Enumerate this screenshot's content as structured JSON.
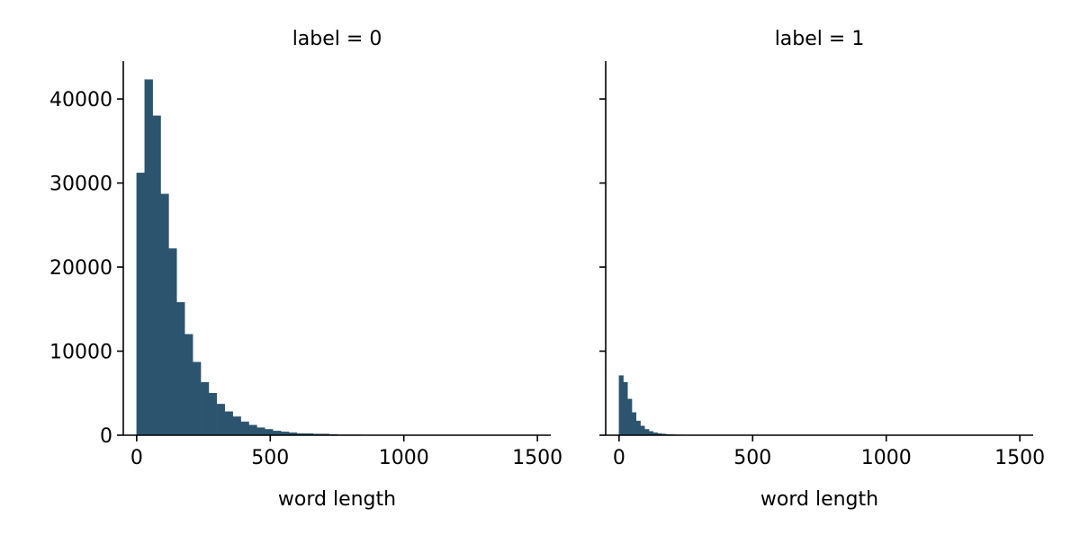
{
  "chart_data": [
    {
      "type": "bar",
      "title": "label = 0",
      "xlabel": "word length",
      "ylabel": "",
      "xlim": [
        -50,
        1550
      ],
      "ylim": [
        0,
        44500
      ],
      "xticks": [
        0,
        500,
        1000,
        1500
      ],
      "xtick_labels": [
        "0",
        "500",
        "1000",
        "1500"
      ],
      "yticks": [
        0,
        10000,
        20000,
        30000,
        40000
      ],
      "ytick_labels": [
        "0",
        "10000",
        "20000",
        "30000",
        "40000"
      ],
      "ytick_labels_visible": true,
      "grid": false,
      "bin_edges_start": 0,
      "bin_width": 30,
      "bar_color": "#2c546e",
      "values": [
        31200,
        42300,
        38000,
        28700,
        22200,
        15800,
        12000,
        8700,
        6300,
        5000,
        3700,
        2800,
        2200,
        1600,
        1200,
        900,
        700,
        500,
        400,
        300,
        200,
        200,
        150,
        150,
        100,
        50,
        50,
        50,
        30,
        30,
        20,
        20,
        10,
        10,
        10,
        10,
        5,
        5,
        5,
        5,
        5,
        5,
        5,
        5,
        5,
        5,
        5,
        5,
        5,
        5
      ]
    },
    {
      "type": "bar",
      "title": "label = 1",
      "xlabel": "word length",
      "ylabel": "",
      "xlim": [
        -50,
        1550
      ],
      "ylim": [
        0,
        44500
      ],
      "xticks": [
        0,
        500,
        1000,
        1500
      ],
      "xtick_labels": [
        "0",
        "500",
        "1000",
        "1500"
      ],
      "yticks": [
        0,
        10000,
        20000,
        30000,
        40000
      ],
      "ytick_labels": [
        "",
        "",
        "",
        "",
        ""
      ],
      "ytick_labels_visible": false,
      "grid": false,
      "bin_edges_start": 0,
      "bin_width": 16,
      "bar_color": "#2c546e",
      "values": [
        7100,
        6300,
        4300,
        2700,
        1700,
        1100,
        700,
        450,
        300,
        200,
        150,
        100,
        70,
        50,
        40,
        30,
        20,
        15,
        10,
        10,
        5,
        5,
        5,
        5,
        5
      ]
    }
  ]
}
